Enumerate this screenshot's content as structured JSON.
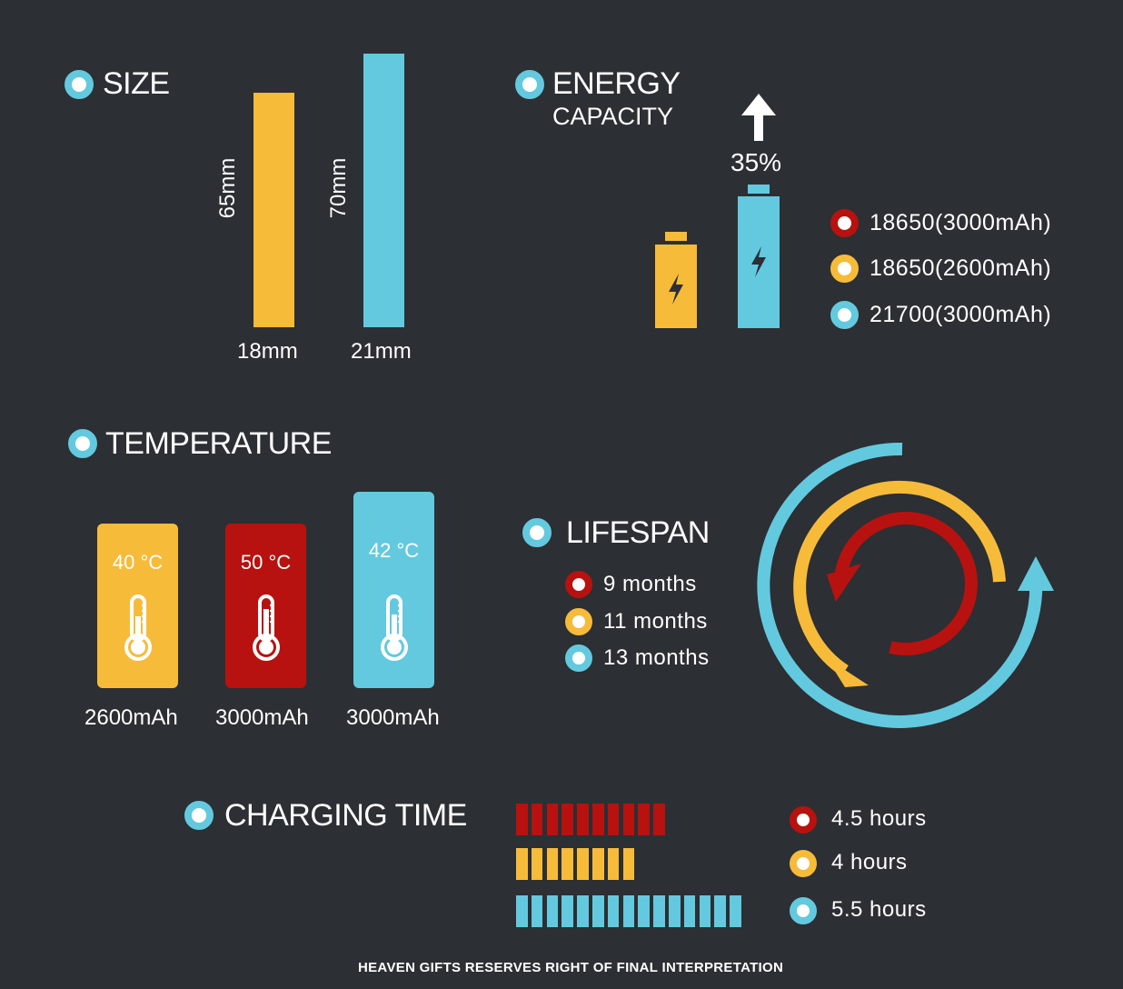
{
  "colors": {
    "background": "#2c2f33",
    "yellow": "#f7bb3a",
    "blue": "#63c9df",
    "red": "#b7120f",
    "white": "#ffffff"
  },
  "size": {
    "heading": "SIZE",
    "bars": [
      {
        "height_label": "65mm",
        "width_label": "18mm",
        "color": "#f7bb3a",
        "value": 65
      },
      {
        "height_label": "70mm",
        "width_label": "21mm",
        "color": "#63c9df",
        "value": 70
      }
    ]
  },
  "energy": {
    "heading_line1": "ENERGY",
    "heading_line2": "CAPACITY",
    "increase_label": "35%",
    "legend": [
      {
        "label": "18650(3000mAh)",
        "color": "#b7120f"
      },
      {
        "label": "18650(2600mAh)",
        "color": "#f7bb3a"
      },
      {
        "label": "21700(3000mAh)",
        "color": "#63c9df"
      }
    ]
  },
  "temperature": {
    "heading": "TEMPERATURE",
    "items": [
      {
        "value": "40 °C",
        "caption": "2600mAh",
        "color": "#f7bb3a"
      },
      {
        "value": "50 °C",
        "caption": "3000mAh",
        "color": "#b7120f"
      },
      {
        "value": "42 °C",
        "caption": "3000mAh",
        "color": "#63c9df"
      }
    ]
  },
  "lifespan": {
    "heading": "LIFESPAN",
    "legend": [
      {
        "label": "9 months",
        "color": "#b7120f",
        "months": 9
      },
      {
        "label": "11 months",
        "color": "#f7bb3a",
        "months": 11
      },
      {
        "label": "13 months",
        "color": "#63c9df",
        "months": 13
      }
    ]
  },
  "charging": {
    "heading": "CHARGING TIME",
    "rows": [
      {
        "label": "4.5 hours",
        "hours": 4.5,
        "segments": 10,
        "color": "#b7120f"
      },
      {
        "label": "4 hours",
        "hours": 4,
        "segments": 8,
        "color": "#f7bb3a"
      },
      {
        "label": "5.5 hours",
        "hours": 5.5,
        "segments": 15,
        "color": "#63c9df"
      }
    ]
  },
  "footer": "HEAVEN GIFTS RESERVES RIGHT OF FINAL INTERPRETATION",
  "chart_data": [
    {
      "type": "bar",
      "title": "SIZE",
      "categories": [
        "18mm",
        "21mm"
      ],
      "values": [
        65,
        70
      ],
      "ylabel": "mm"
    },
    {
      "type": "bar",
      "title": "CHARGING TIME",
      "categories": [
        "18650(3000mAh)",
        "18650(2600mAh)",
        "21700(3000mAh)"
      ],
      "values": [
        4.5,
        4,
        5.5
      ],
      "ylabel": "hours"
    },
    {
      "type": "bar",
      "title": "LIFESPAN",
      "categories": [
        "18650(3000mAh)",
        "18650(2600mAh)",
        "21700(3000mAh)"
      ],
      "values": [
        9,
        11,
        13
      ],
      "ylabel": "months"
    }
  ]
}
